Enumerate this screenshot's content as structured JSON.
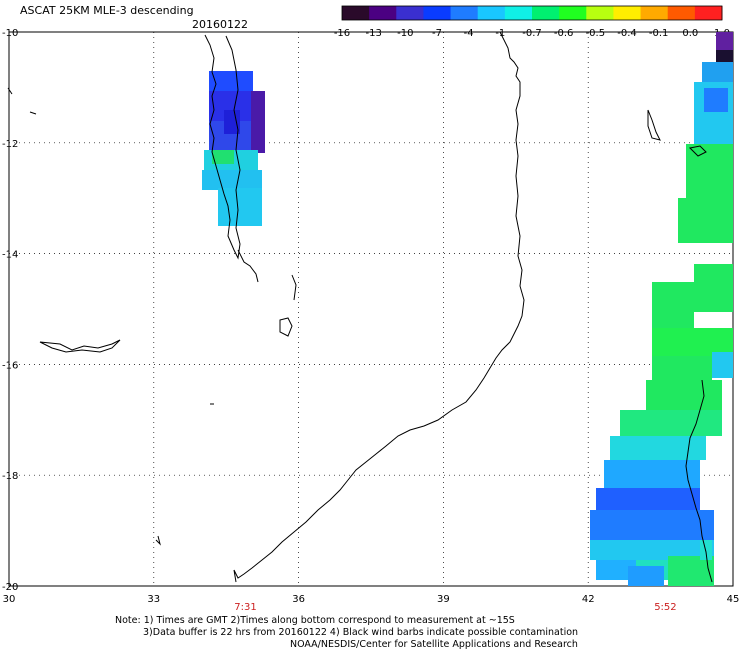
{
  "header": {
    "title": "ASCAT 25KM MLE-3 descending",
    "date": "20160122"
  },
  "colorbar": {
    "tick_labels": [
      "-16",
      "-13",
      "-10",
      "-7",
      "-4",
      "-1",
      "-0.7",
      "-0.6",
      "-0.5",
      "-0.4",
      "-0.1",
      "0.0",
      "1.0"
    ],
    "colors": [
      "#2a0a2a",
      "#4b0082",
      "#3a2fd0",
      "#0a3cff",
      "#1f7cff",
      "#19c7ff",
      "#10f0e6",
      "#00f070",
      "#20ff20",
      "#b8ff10",
      "#ffee00",
      "#ffaa00",
      "#ff5a00",
      "#ff2020"
    ]
  },
  "map": {
    "lon_labels": [
      "30",
      "33",
      "36",
      "39",
      "42",
      "45"
    ],
    "lat_labels": [
      "-10",
      "-12",
      "-14",
      "-16",
      "-18",
      "-20"
    ],
    "lon_range": [
      30,
      45
    ],
    "lat_range": [
      -20,
      -10
    ],
    "grid": "dotted",
    "time_labels": [
      {
        "text": "7:31",
        "lon": 34.9
      },
      {
        "text": "5:52",
        "lon": 43.6
      }
    ]
  },
  "notes": [
    "Note: 1) Times are GMT 2)Times along bottom correspond to measurement at ~15S",
    "3)Data buffer is 22 hrs from 20160122 4) Black wind barbs indicate possible contamination",
    "NOAA/NESDIS/Center for Satellite Applications and Research"
  ]
}
